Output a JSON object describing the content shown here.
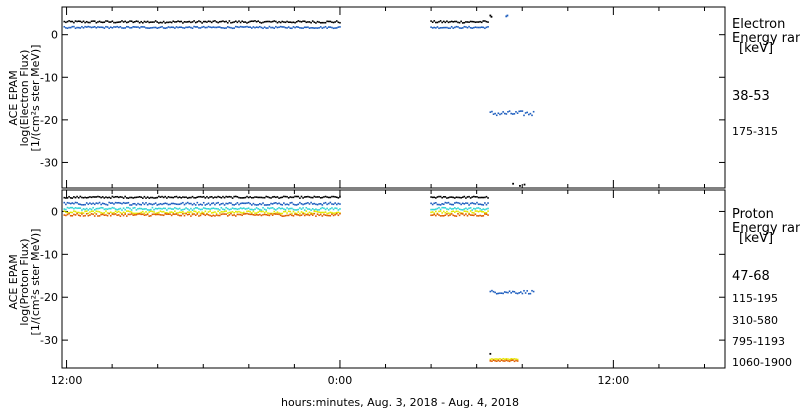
{
  "chart_data": [
    {
      "type": "scatter",
      "panel": "electron",
      "ylabel": [
        "ACE EPAM",
        "log(Electron Flux)",
        "[1/(cm²s ster MeV)]"
      ],
      "ylim": [
        -36,
        6.5
      ],
      "yticks": [
        0,
        -10,
        -20,
        -30
      ],
      "legend_title": [
        "Electron",
        "Energy ranges",
        "[keV]"
      ],
      "series": [
        {
          "name": "38-53",
          "color": "#000000",
          "segments": [
            {
              "t": [
                11.9,
                24.0
              ],
              "y": 3.0,
              "jitter": 0.25
            },
            {
              "t": [
                28.0,
                30.5
              ],
              "y": 3.0,
              "jitter": 0.25
            }
          ],
          "points": [
            [
              30.6,
              4.5
            ],
            [
              30.65,
              4.2
            ],
            [
              31.6,
              -35.0
            ],
            [
              31.9,
              -35.5
            ],
            [
              32.1,
              -35.2
            ]
          ]
        },
        {
          "name": "175-315",
          "color": "#1f5fbf",
          "segments": [
            {
              "t": [
                11.9,
                24.0
              ],
              "y": 1.7,
              "jitter": 0.2
            },
            {
              "t": [
                28.0,
                30.5
              ],
              "y": 1.7,
              "jitter": 0.2
            },
            {
              "t": [
                30.6,
                32.5
              ],
              "y": -18.5,
              "jitter": 0.6
            }
          ],
          "points": [
            [
              31.3,
              4.3
            ],
            [
              31.35,
              4.5
            ]
          ]
        }
      ]
    },
    {
      "type": "scatter",
      "panel": "proton",
      "ylabel": [
        "ACE EPAM",
        "log(Proton Flux)",
        "[1/(cm²s ster MeV)]"
      ],
      "ylim": [
        -36.5,
        5.0
      ],
      "yticks": [
        0,
        -10,
        -20,
        -30
      ],
      "legend_title": [
        "Proton",
        "Energy ranges",
        "[keV]"
      ],
      "series": [
        {
          "name": "47-68",
          "color": "#000000",
          "segments": [
            {
              "t": [
                11.9,
                24.0
              ],
              "y": 3.3,
              "jitter": 0.2
            },
            {
              "t": [
                28.0,
                30.5
              ],
              "y": 3.3,
              "jitter": 0.2
            }
          ],
          "points": [
            [
              30.6,
              -33.2
            ]
          ]
        },
        {
          "name": "115-195",
          "color": "#1f5fbf",
          "segments": [
            {
              "t": [
                11.9,
                24.0
              ],
              "y": 1.8,
              "jitter": 0.3
            },
            {
              "t": [
                28.0,
                30.5
              ],
              "y": 1.8,
              "jitter": 0.3
            },
            {
              "t": [
                30.6,
                32.5
              ],
              "y": -18.8,
              "jitter": 0.4
            }
          ],
          "points": []
        },
        {
          "name": "310-580",
          "color": "#33d6d6",
          "segments": [
            {
              "t": [
                11.9,
                24.0
              ],
              "y": 0.6,
              "jitter": 0.3
            },
            {
              "t": [
                28.0,
                30.5
              ],
              "y": 0.6,
              "jitter": 0.3
            }
          ],
          "points": []
        },
        {
          "name": "795-1193",
          "color": "#e6e600",
          "segments": [
            {
              "t": [
                11.9,
                24.0
              ],
              "y": -0.2,
              "jitter": 0.3
            },
            {
              "t": [
                28.0,
                30.5
              ],
              "y": -0.2,
              "jitter": 0.3
            },
            {
              "t": [
                30.6,
                31.8
              ],
              "y": -34.4,
              "jitter": 0.15
            }
          ],
          "points": []
        },
        {
          "name": "1060-1900",
          "color": "#e06000",
          "segments": [
            {
              "t": [
                11.9,
                24.0
              ],
              "y": -0.8,
              "jitter": 0.3
            },
            {
              "t": [
                28.0,
                30.5
              ],
              "y": -0.8,
              "jitter": 0.3
            },
            {
              "t": [
                30.6,
                31.8
              ],
              "y": -34.8,
              "jitter": 0.15
            }
          ],
          "points": []
        }
      ]
    }
  ],
  "x_axis": {
    "range_hours": [
      11.8,
      40.9
    ],
    "major_ticks": [
      12,
      24,
      36
    ],
    "major_labels": [
      "12:00",
      "0:00",
      "12:00"
    ],
    "minor_step_hours": 2,
    "label": "hours:minutes, Aug.  3, 2018 - Aug.  4, 2018"
  }
}
